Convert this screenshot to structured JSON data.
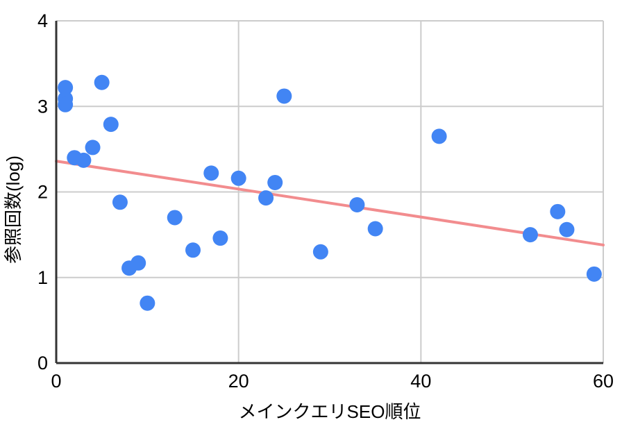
{
  "chart_data": {
    "type": "scatter",
    "title": "",
    "xlabel": "メインクエリSEO順位",
    "ylabel": "参照回数(log)",
    "xlim": [
      0,
      60
    ],
    "ylim": [
      0,
      4
    ],
    "x_ticks": [
      0,
      20,
      40,
      60
    ],
    "y_ticks": [
      0,
      1,
      2,
      3,
      4
    ],
    "grid": true,
    "legend": "none",
    "points": [
      [
        1,
        3.22
      ],
      [
        1,
        3.09
      ],
      [
        1,
        3.02
      ],
      [
        2,
        2.4
      ],
      [
        3,
        2.37
      ],
      [
        4,
        2.52
      ],
      [
        5,
        3.28
      ],
      [
        6,
        2.79
      ],
      [
        7,
        1.88
      ],
      [
        8,
        1.11
      ],
      [
        9,
        1.17
      ],
      [
        10,
        0.7
      ],
      [
        13,
        1.7
      ],
      [
        15,
        1.32
      ],
      [
        17,
        2.22
      ],
      [
        18,
        1.46
      ],
      [
        20,
        2.16
      ],
      [
        23,
        1.93
      ],
      [
        24,
        2.11
      ],
      [
        25,
        3.12
      ],
      [
        29,
        1.3
      ],
      [
        33,
        1.85
      ],
      [
        35,
        1.57
      ],
      [
        42,
        2.65
      ],
      [
        52,
        1.5
      ],
      [
        55,
        1.77
      ],
      [
        56,
        1.56
      ],
      [
        59,
        1.04
      ]
    ],
    "trendline": {
      "x1": 0,
      "y1": 2.36,
      "x2": 60,
      "y2": 1.38
    },
    "point_radius": 11,
    "colors": {
      "point": "#4285F4",
      "trendline": "#F28C8E",
      "gridline": "#CCCCCC",
      "axis": "#333333",
      "text": "#000000"
    }
  }
}
